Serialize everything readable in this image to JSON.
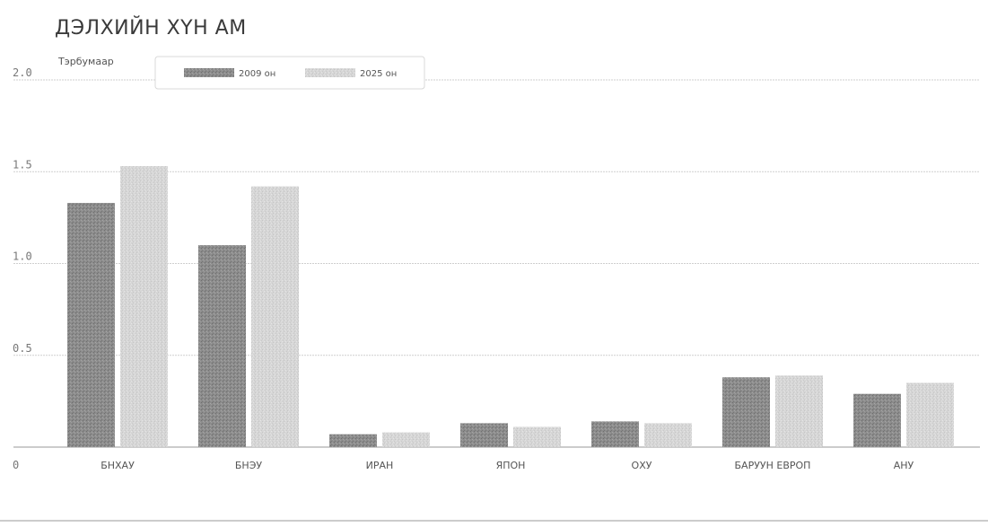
{
  "chart_data": {
    "type": "bar",
    "title": "ДЭЛХИЙН ХҮН АМ",
    "ylabel": "Тэрбумаар",
    "xlabel": "",
    "categories": [
      "БНХАУ",
      "БНЭУ",
      "ИРАН",
      "ЯПОН",
      "ОХУ",
      "БАРУУН ЕВРОП",
      "АНУ"
    ],
    "series": [
      {
        "name": "2009 он",
        "values": [
          1.33,
          1.1,
          0.07,
          0.13,
          0.14,
          0.38,
          0.29
        ],
        "color": "#8f8f8f"
      },
      {
        "name": "2025 он",
        "values": [
          1.53,
          1.42,
          0.08,
          0.11,
          0.13,
          0.39,
          0.35
        ],
        "color": "#d9d9d9"
      }
    ],
    "ylim": [
      0,
      2.0
    ],
    "yticks": [
      0,
      0.5,
      1.0,
      1.5,
      2.0
    ],
    "ytick_labels": [
      "0",
      "0.5",
      "1.0",
      "1.5",
      "2.0"
    ],
    "grid": true,
    "legend_position": "top"
  }
}
